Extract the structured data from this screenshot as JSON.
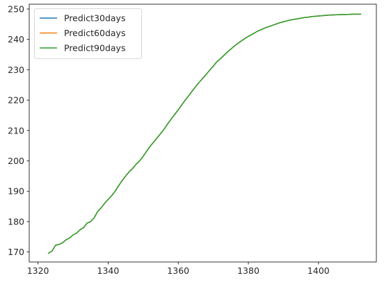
{
  "chart_data": {
    "type": "line",
    "title": "",
    "xlabel": "",
    "ylabel": "",
    "xlim": [
      1317.5,
      1416.5
    ],
    "ylim": [
      166.7,
      251.6
    ],
    "x_ticks": [
      1320,
      1340,
      1360,
      1380,
      1400
    ],
    "y_ticks": [
      170,
      180,
      190,
      200,
      210,
      220,
      230,
      240,
      250
    ],
    "grid": false,
    "legend_position": "top-left",
    "x": [
      1323,
      1324,
      1325,
      1326,
      1327,
      1328,
      1329,
      1330,
      1331,
      1332,
      1333,
      1334,
      1335,
      1336,
      1337,
      1338,
      1339,
      1340,
      1341,
      1342,
      1343,
      1344,
      1345,
      1346,
      1347,
      1348,
      1349,
      1350,
      1351,
      1352,
      1353,
      1354,
      1355,
      1356,
      1357,
      1358,
      1359,
      1360,
      1361,
      1362,
      1363,
      1364,
      1365,
      1366,
      1367,
      1368,
      1369,
      1370,
      1371,
      1372,
      1373,
      1374,
      1375,
      1376,
      1377,
      1378,
      1379,
      1380,
      1381,
      1382,
      1383,
      1384,
      1385,
      1386,
      1387,
      1388,
      1389,
      1390,
      1391,
      1392,
      1393,
      1394,
      1395,
      1396,
      1397,
      1398,
      1399,
      1400,
      1401,
      1402,
      1403,
      1404,
      1405,
      1406,
      1407,
      1408,
      1409,
      1410,
      1411,
      1412
    ],
    "series": [
      {
        "name": "Predict30days",
        "color": "#1f77b4",
        "values": [
          169.6,
          170.3,
          172.2,
          172.5,
          173.0,
          174.0,
          174.6,
          175.6,
          176.2,
          177.3,
          178.0,
          179.5,
          180.0,
          181.2,
          183.3,
          184.5,
          186.0,
          187.3,
          188.5,
          190.0,
          191.8,
          193.5,
          195.0,
          196.4,
          197.5,
          198.9,
          200.0,
          201.5,
          203.2,
          204.8,
          206.2,
          207.6,
          209.0,
          210.5,
          212.2,
          213.8,
          215.3,
          216.8,
          218.4,
          220.0,
          221.5,
          223.0,
          224.5,
          225.9,
          227.2,
          228.5,
          229.9,
          231.2,
          232.6,
          233.6,
          234.7,
          235.8,
          236.8,
          237.8,
          238.7,
          239.5,
          240.3,
          241.0,
          241.6,
          242.3,
          242.9,
          243.4,
          243.9,
          244.3,
          244.7,
          245.1,
          245.5,
          245.8,
          246.1,
          246.4,
          246.6,
          246.8,
          247.0,
          247.2,
          247.3,
          247.5,
          247.6,
          247.7,
          247.8,
          247.9,
          248.0,
          248.05,
          248.1,
          248.15,
          248.2,
          248.2,
          248.25,
          248.3,
          248.3,
          248.3
        ]
      },
      {
        "name": "Predict60days",
        "color": "#ff7f0e",
        "values": [
          169.6,
          170.3,
          172.2,
          172.5,
          173.0,
          174.0,
          174.6,
          175.6,
          176.2,
          177.3,
          178.0,
          179.5,
          180.0,
          181.2,
          183.3,
          184.5,
          186.0,
          187.3,
          188.5,
          190.0,
          191.8,
          193.5,
          195.0,
          196.4,
          197.5,
          198.9,
          200.0,
          201.5,
          203.2,
          204.8,
          206.2,
          207.6,
          209.0,
          210.5,
          212.2,
          213.8,
          215.3,
          216.8,
          218.4,
          220.0,
          221.5,
          223.0,
          224.5,
          225.9,
          227.2,
          228.5,
          229.9,
          231.2,
          232.6,
          233.6,
          234.7,
          235.8,
          236.8,
          237.8,
          238.7,
          239.5,
          240.3,
          241.0,
          241.6,
          242.3,
          242.9,
          243.4,
          243.9,
          244.3,
          244.7,
          245.1,
          245.5,
          245.8,
          246.1,
          246.4,
          246.6,
          246.8,
          247.0,
          247.2,
          247.3,
          247.5,
          247.6,
          247.7,
          247.8,
          247.9,
          248.0,
          248.05,
          248.1,
          248.15,
          248.2,
          248.2,
          248.25,
          248.3,
          248.3,
          248.3
        ]
      },
      {
        "name": "Predict90days",
        "color": "#2ca02c",
        "values": [
          169.6,
          170.3,
          172.2,
          172.5,
          173.0,
          174.0,
          174.6,
          175.6,
          176.2,
          177.3,
          178.0,
          179.5,
          180.0,
          181.2,
          183.3,
          184.5,
          186.0,
          187.3,
          188.5,
          190.0,
          191.8,
          193.5,
          195.0,
          196.4,
          197.5,
          198.9,
          200.0,
          201.5,
          203.2,
          204.8,
          206.2,
          207.6,
          209.0,
          210.5,
          212.2,
          213.8,
          215.3,
          216.8,
          218.4,
          220.0,
          221.5,
          223.0,
          224.5,
          225.9,
          227.2,
          228.5,
          229.9,
          231.2,
          232.6,
          233.6,
          234.7,
          235.8,
          236.8,
          237.8,
          238.7,
          239.5,
          240.3,
          241.0,
          241.6,
          242.3,
          242.9,
          243.4,
          243.9,
          244.3,
          244.7,
          245.1,
          245.5,
          245.8,
          246.1,
          246.4,
          246.6,
          246.8,
          247.0,
          247.2,
          247.3,
          247.5,
          247.6,
          247.7,
          247.8,
          247.9,
          248.0,
          248.05,
          248.1,
          248.15,
          248.2,
          248.2,
          248.25,
          248.3,
          248.3,
          248.3
        ]
      }
    ]
  }
}
